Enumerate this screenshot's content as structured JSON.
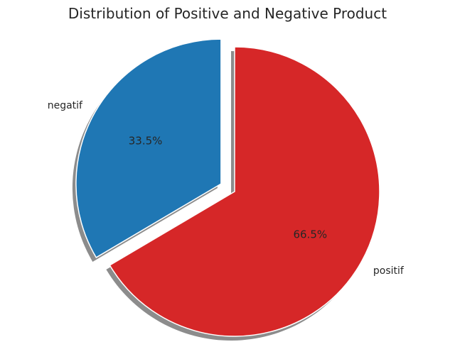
{
  "chart_data": {
    "type": "pie",
    "title": "Distribution of Positive and Negative Product",
    "slices": [
      {
        "label": "negatif",
        "percent": "33.5%",
        "value": 33.5,
        "color": "#1f77b4",
        "exploded": true
      },
      {
        "label": "positif",
        "percent": "66.5%",
        "value": 66.5,
        "color": "#d62728",
        "exploded": false
      }
    ],
    "start_angle": 90,
    "direction": "counterclockwise",
    "shadow": true
  }
}
